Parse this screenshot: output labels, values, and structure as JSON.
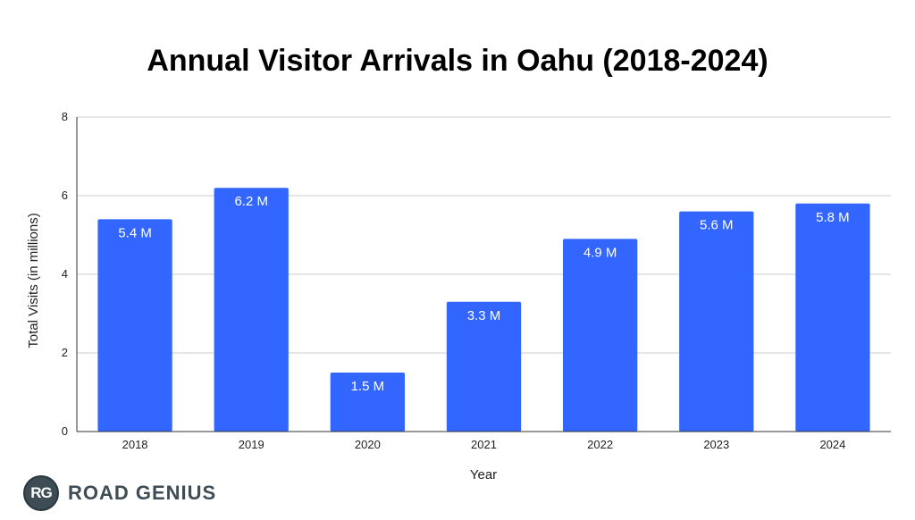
{
  "chart_data": {
    "type": "bar",
    "title": "Annual Visitor Arrivals in Oahu (2018-2024)",
    "xlabel": "Year",
    "ylabel": "Total Visits (in millions)",
    "categories": [
      "2018",
      "2019",
      "2020",
      "2021",
      "2022",
      "2023",
      "2024"
    ],
    "values": [
      5.4,
      6.2,
      1.5,
      3.3,
      4.9,
      5.6,
      5.8
    ],
    "data_labels": [
      "5.4 M",
      "6.2 M",
      "1.5 M",
      "3.3 M",
      "4.9 M",
      "5.6 M",
      "5.8 M"
    ],
    "ylim": [
      0,
      8
    ],
    "yticks": [
      "0",
      "2",
      "4",
      "6",
      "8"
    ],
    "grid": true,
    "legend": "none",
    "bar_color": "#3366ff",
    "grid_color": "#cccccc"
  },
  "branding": {
    "badge": "RG",
    "name": "ROAD GENIUS"
  }
}
